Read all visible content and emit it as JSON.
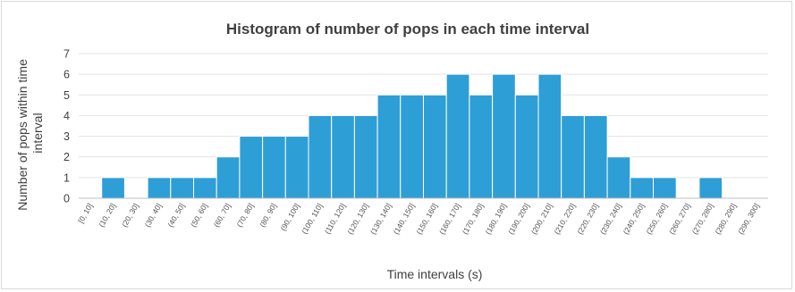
{
  "chart_data": {
    "type": "bar",
    "title": "Histogram of number of pops in each time interval",
    "xlabel": "Time intervals (s)",
    "ylabel": "Number of pops within time interval",
    "ylim": [
      0,
      7
    ],
    "yticks": [
      "0",
      "1",
      "2",
      "3",
      "4",
      "5",
      "6",
      "7"
    ],
    "grid": true,
    "legend": "none",
    "bar_color": "#2e9ed6",
    "categories": [
      "[0, 10]",
      "(10, 20]",
      "(20, 30]",
      "(30, 40]",
      "(40, 50]",
      "(50, 60]",
      "(60, 70]",
      "(70, 80]",
      "(80, 90]",
      "(90, 100]",
      "(100, 110]",
      "(110, 120]",
      "(120, 130]",
      "(130, 140]",
      "(140, 150]",
      "(150, 160]",
      "(160, 170]",
      "(170, 180]",
      "(180, 190]",
      "(190, 200]",
      "(200, 210]",
      "(210, 220]",
      "(220, 230]",
      "(230, 240]",
      "(240, 250]",
      "(250, 260]",
      "(260, 270]",
      "(270, 280]",
      "(280, 290]",
      "(290, 300]"
    ],
    "values": [
      0,
      1,
      0,
      1,
      1,
      1,
      2,
      3,
      3,
      3,
      4,
      4,
      4,
      5,
      5,
      5,
      6,
      5,
      6,
      5,
      6,
      4,
      4,
      2,
      1,
      1,
      0,
      1,
      0,
      0
    ]
  }
}
